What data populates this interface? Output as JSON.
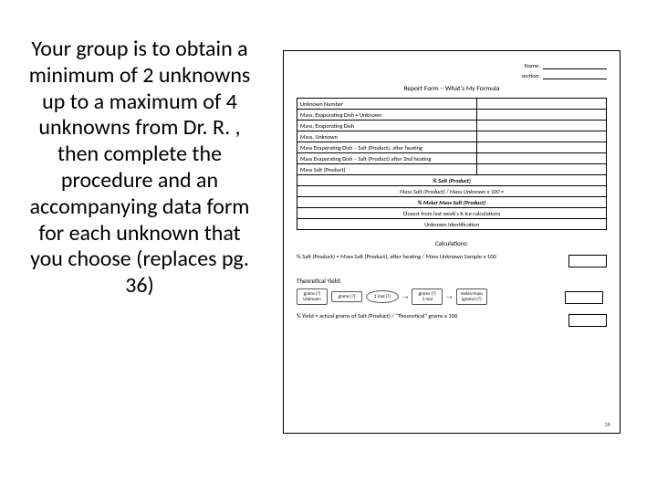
{
  "instruction_text": "Your group is to obtain  a minimum of 2 unknowns up to a maximum of 4 unknowns from Dr. R. , then complete the procedure and an accompanying data form for each unknown that you choose (replaces pg. 36)",
  "form": {
    "header": {
      "name": "Name:",
      "section": "section:"
    },
    "title": "Report Form – What's My Formula",
    "rows": [
      {
        "label": "Unknown Number",
        "value": ""
      },
      {
        "label": "Mass, Evaporating Dish + Unknown",
        "value": ""
      },
      {
        "label": "Mass, Evaporating Dish",
        "value": ""
      },
      {
        "label": "Mass, Unknown",
        "value": ""
      },
      {
        "label": "Mass Evaporating Dish – Salt (Product), after heating",
        "value": ""
      },
      {
        "label": "Mass Salt (Product) / Mass Unknown x 100 =",
        "value": "",
        "center": true,
        "bold": true,
        "span": true,
        "pretext": "% Salt (Product)"
      },
      {
        "label": "Mass Evaporating Dish – Salt (Product) after 2nd heating",
        "value": ""
      },
      {
        "label": "Mass Salt (Product)",
        "value": ""
      }
    ],
    "percent_salt": "% Salt (Product)",
    "percent_formula_row": "Mass Salt (Product) / Mass Unknown x 100 =",
    "molar_mass_row": "% Molar Mass Salt (Product)",
    "closest_row": "Closest from last week's K-Ice calculations",
    "unknown_id_row": "Unknown Identification",
    "calculations_title": "Calculations:",
    "formula1": "% Salt (Product) = Mass Salt (Product), after heating / Mass Unknown Sample x 100",
    "theoretical_label": "Theoretical Yield:",
    "flow": {
      "b1_top": "grams (?)",
      "b1_bot": "Unknown",
      "b2_top": "grams (?)",
      "oval_txt": "1 mol (?)",
      "b3_top": "grams (?)",
      "oval2": "1 mol",
      "b4_top": "moles/mass",
      "b4_bot": "(grams) (?)"
    },
    "formula2": "% Yield = actual grams of Salt (Product) / \"Theoretical\" grams x 100",
    "page_num": "36"
  },
  "colors": {
    "text": "#000000",
    "border": "#000000",
    "bg": "#ffffff"
  }
}
